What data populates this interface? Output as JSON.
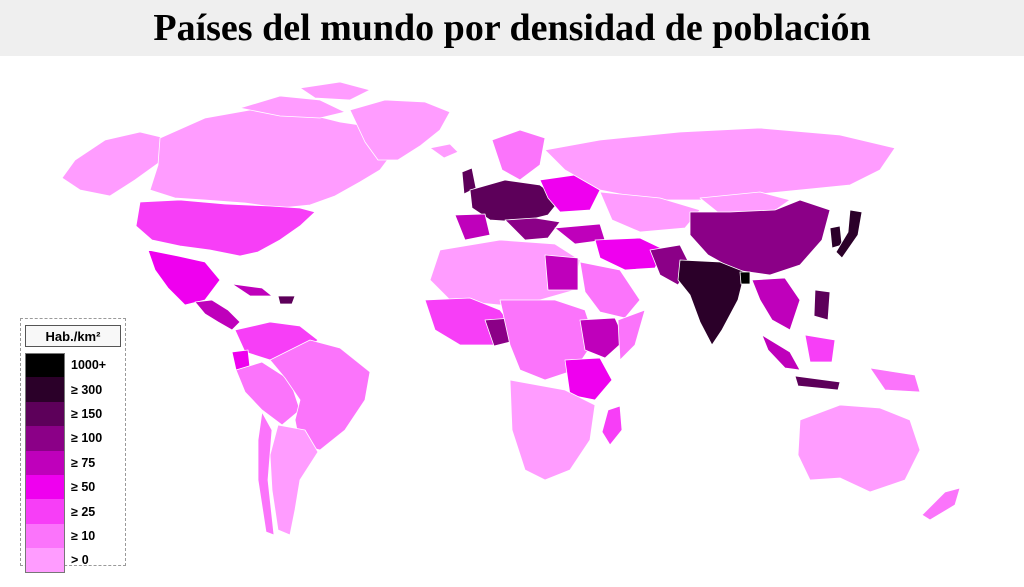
{
  "title": "Países del mundo por densidad de población",
  "legend": {
    "header": "Hab./km²",
    "items": [
      {
        "label": "1000+",
        "color": "#000000"
      },
      {
        "label": "≥ 300",
        "color": "#2b0029"
      },
      {
        "label": "≥ 150",
        "color": "#5d005a"
      },
      {
        "label": "≥ 100",
        "color": "#8b0087"
      },
      {
        "label": "≥ 75",
        "color": "#bf00bb"
      },
      {
        "label": "≥ 50",
        "color": "#ef00ef"
      },
      {
        "label": "≥ 25",
        "color": "#f73ef7"
      },
      {
        "label": "≥ 10",
        "color": "#fb74fb"
      },
      {
        "label": "> 0",
        "color": "#ff9cff"
      }
    ]
  }
}
